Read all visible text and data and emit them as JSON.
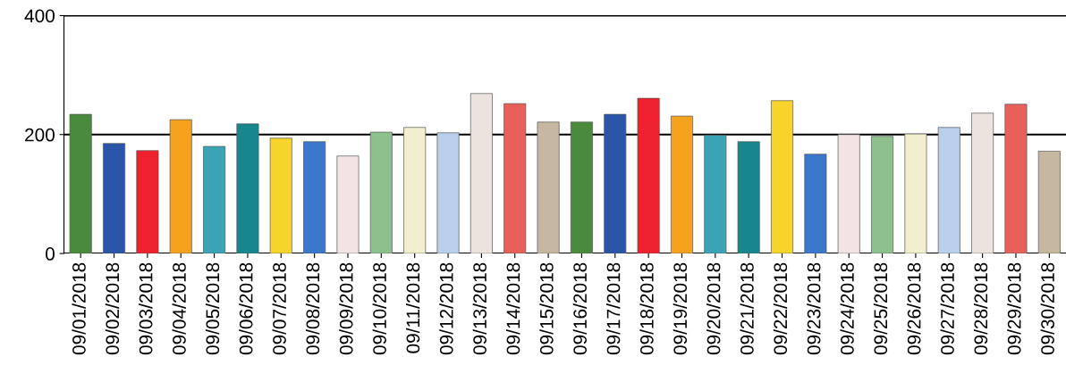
{
  "chart_data": {
    "type": "bar",
    "categories": [
      "09/01/2018",
      "09/02/2018",
      "09/03/2018",
      "09/04/2018",
      "09/05/2018",
      "09/06/2018",
      "09/07/2018",
      "09/08/2018",
      "09/09/2018",
      "09/10/2018",
      "09/11/2018",
      "09/12/2018",
      "09/13/2018",
      "09/14/2018",
      "09/15/2018",
      "09/16/2018",
      "09/17/2018",
      "09/18/2018",
      "09/19/2018",
      "09/20/2018",
      "09/21/2018",
      "09/22/2018",
      "09/23/2018",
      "09/24/2018",
      "09/25/2018",
      "09/26/2018",
      "09/27/2018",
      "09/28/2018",
      "09/29/2018",
      "09/30/2018"
    ],
    "values": [
      234,
      185,
      173,
      225,
      180,
      218,
      194,
      188,
      164,
      204,
      212,
      203,
      269,
      252,
      221,
      221,
      234,
      261,
      231,
      199,
      188,
      257,
      167,
      200,
      197,
      201,
      212,
      236,
      251,
      172
    ],
    "colors": [
      "#4a8a3c",
      "#2a55a8",
      "#f0212e",
      "#f7a21c",
      "#3aa3b5",
      "#17868d",
      "#f8d42a",
      "#3a78cc",
      "#f1e4e2",
      "#8cc08c",
      "#f2efcf",
      "#b8d0ea",
      "#ece2de",
      "#e8605a",
      "#c6b8a0",
      "#4a8a3c",
      "#2a55a8",
      "#f0212e",
      "#f7a21c",
      "#3aa3b5",
      "#17868d",
      "#f8d42a",
      "#3a78cc",
      "#f1e4e2",
      "#8cc08c",
      "#f2efcf",
      "#b8d0ea",
      "#ece2de",
      "#e8605a",
      "#c6b8a0"
    ],
    "ylim": [
      0,
      400
    ],
    "yticks": [
      0,
      200,
      400
    ],
    "grid": "y",
    "legend": false
  }
}
